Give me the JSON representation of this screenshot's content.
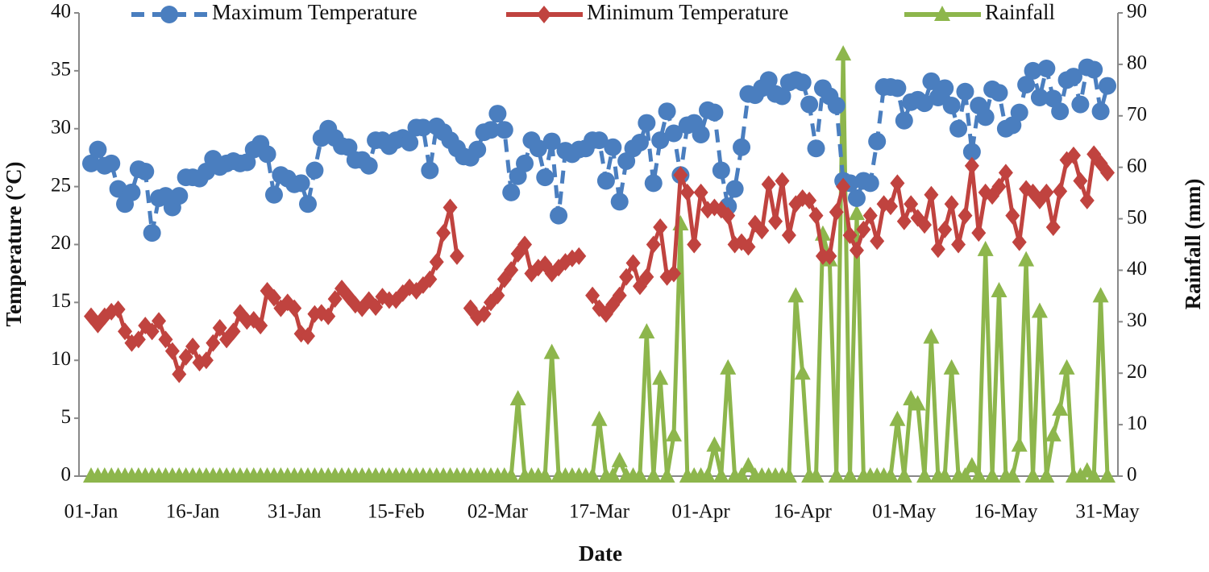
{
  "chart_data": {
    "type": "line",
    "x_label": "Date",
    "y_label": "Temperature (°C)",
    "y2_label": "Rainfall (mm)",
    "legend": "top",
    "grid": false,
    "categories": [
      "01-Jan",
      null,
      null,
      null,
      null,
      null,
      null,
      null,
      null,
      null,
      null,
      null,
      null,
      null,
      null,
      "16-Jan",
      null,
      null,
      null,
      null,
      null,
      null,
      null,
      null,
      null,
      null,
      null,
      null,
      null,
      null,
      "31-Jan",
      null,
      null,
      null,
      null,
      null,
      null,
      null,
      null,
      null,
      null,
      null,
      null,
      null,
      null,
      "15-Feb",
      null,
      null,
      null,
      null,
      null,
      null,
      null,
      null,
      null,
      null,
      null,
      null,
      null,
      null,
      "02-Mar",
      null,
      null,
      null,
      null,
      null,
      null,
      null,
      null,
      null,
      null,
      null,
      null,
      null,
      null,
      "17-Mar",
      null,
      null,
      null,
      null,
      null,
      null,
      null,
      null,
      null,
      null,
      null,
      null,
      null,
      null,
      "01-Apr",
      null,
      null,
      null,
      null,
      null,
      null,
      null,
      null,
      null,
      null,
      null,
      null,
      null,
      null,
      "16-Apr",
      null,
      null,
      null,
      null,
      null,
      null,
      null,
      null,
      null,
      null,
      null,
      null,
      null,
      null,
      "01-May",
      null,
      null,
      null,
      null,
      null,
      null,
      null,
      null,
      null,
      null,
      null,
      null,
      null,
      null,
      "16-May",
      null,
      null,
      null,
      null,
      null,
      null,
      null,
      null,
      null,
      null,
      null,
      null,
      null,
      null,
      "31-May"
    ],
    "ylim": [
      0,
      40
    ],
    "yticks": [
      0,
      5,
      10,
      15,
      20,
      25,
      30,
      35,
      40
    ],
    "y2lim": [
      0,
      90
    ],
    "y2ticks": [
      0,
      10,
      20,
      30,
      40,
      50,
      60,
      70,
      80,
      90
    ],
    "series": [
      {
        "name": "Maximum Temperature",
        "color": "#4a7ebf",
        "marker": "circle",
        "dashed": true,
        "values": [
          27,
          28.2,
          26.8,
          27,
          24.8,
          23.5,
          24.5,
          26.5,
          26.3,
          21,
          24,
          24.2,
          23.2,
          24.2,
          25.8,
          25.8,
          25.7,
          26.3,
          27.4,
          26.7,
          27,
          27.2,
          27,
          27.1,
          28.2,
          28.7,
          27.8,
          24.3,
          26,
          25.7,
          25.2,
          25.3,
          23.5,
          26.4,
          29.2,
          30,
          29.2,
          28.5,
          28.4,
          27.3,
          27.3,
          26.8,
          29,
          29,
          28.5,
          29,
          29.2,
          28.8,
          30.1,
          30.1,
          26.4,
          30.2,
          29.7,
          29,
          28.3,
          27.6,
          27.5,
          28.2,
          29.7,
          29.9,
          31.3,
          29.9,
          24.5,
          25.9,
          27,
          29,
          28.3,
          25.8,
          28.9,
          22.5,
          28.1,
          27.8,
          28.2,
          28.3,
          29,
          29,
          25.5,
          28.4,
          23.7,
          27.2,
          28.3,
          28.8,
          30.5,
          25.3,
          29,
          31.5,
          29.6,
          26,
          30.3,
          30.5,
          29.5,
          31.6,
          31.4,
          26.4,
          23.3,
          24.8,
          28.4,
          33,
          32.9,
          33.5,
          34.2,
          33,
          32.8,
          34,
          34.2,
          34,
          32.1,
          28.3,
          33.5,
          32.8,
          32,
          25.5,
          25.3,
          24,
          25.5,
          25.3,
          28.9,
          33.6,
          33.6,
          33.5,
          30.7,
          32.3,
          32.5,
          32.2,
          34.1,
          32.7,
          33.5,
          32,
          30,
          33.2,
          28,
          32,
          31,
          33.4,
          33.1,
          30,
          30.3,
          31.4,
          33.8,
          35,
          32.7,
          35.2,
          32.6,
          31.5,
          34.2,
          34.5,
          32.1,
          35.3,
          35.1,
          31.5,
          33.7
        ]
      },
      {
        "name": "Minimum Temperature",
        "color": "#c0433f",
        "marker": "diamond",
        "dashed": false,
        "values": [
          13.8,
          13.1,
          13.8,
          14.2,
          14.4,
          12.5,
          11.5,
          11.8,
          13,
          12.5,
          13.4,
          11.8,
          10.8,
          8.8,
          10.3,
          11.2,
          9.8,
          10,
          11.5,
          12.8,
          11.8,
          12.5,
          14.1,
          13.4,
          13.5,
          13,
          16,
          15.4,
          14.5,
          15,
          14.5,
          12.3,
          12.1,
          14,
          14.1,
          13.8,
          15.3,
          16.2,
          15.5,
          14.8,
          14.5,
          15.2,
          14.6,
          15.5,
          15.2,
          15.2,
          15.8,
          16.3,
          16,
          16.5,
          17,
          18.5,
          21,
          23.2,
          19,
          null,
          14.5,
          13.7,
          14,
          15,
          15.6,
          17,
          17.8,
          19.2,
          20,
          17.5,
          18,
          18.3,
          17.5,
          18,
          18.5,
          18.8,
          19,
          null,
          15.6,
          14.5,
          14,
          14.8,
          15.6,
          17.2,
          18.4,
          16.4,
          17.2,
          20,
          21.5,
          17.2,
          17.5,
          26,
          24.5,
          20,
          24.5,
          23,
          23.2,
          23,
          22.5,
          20,
          20.2,
          19.8,
          21.8,
          21.2,
          25.2,
          22,
          25.5,
          20.8,
          23.5,
          24,
          23.8,
          22.5,
          19,
          19,
          22.8,
          25,
          20.8,
          19.5,
          21.3,
          22.5,
          20.3,
          23.5,
          23.3,
          25.3,
          22,
          23.5,
          22.3,
          21.7,
          24.3,
          19.6,
          21.3,
          23.5,
          20,
          22.5,
          26.8,
          21,
          24.5,
          24.2,
          25,
          26.2,
          22.5,
          20.2,
          24.8,
          24.5,
          23.8,
          24.5,
          21.5,
          24.6,
          27.3,
          27.7,
          25.5,
          23.8,
          27.8,
          27,
          26.2
        ]
      },
      {
        "name": "Rainfall",
        "color": "#8db64c",
        "marker": "triangle",
        "dashed": false,
        "axis": "y2",
        "values": [
          0,
          0,
          0,
          0,
          0,
          0,
          0,
          0,
          0,
          0,
          0,
          0,
          0,
          0,
          0,
          0,
          0,
          0,
          0,
          0,
          0,
          0,
          0,
          0,
          0,
          0,
          0,
          0,
          0,
          0,
          0,
          0,
          0,
          0,
          0,
          0,
          0,
          0,
          0,
          0,
          0,
          0,
          0,
          0,
          0,
          0,
          0,
          0,
          0,
          0,
          0,
          0,
          0,
          0,
          0,
          0,
          0,
          0,
          0,
          0,
          0,
          0,
          0,
          15,
          0,
          0,
          0,
          0,
          24,
          0,
          0,
          0,
          0,
          0,
          0,
          11,
          0,
          0,
          3,
          0,
          0,
          0,
          28,
          0,
          19,
          0,
          8,
          49,
          0,
          0,
          0,
          0,
          6,
          0,
          21,
          0,
          0,
          2,
          0,
          0,
          0,
          0,
          0,
          0,
          35,
          20,
          0,
          0,
          47,
          42,
          0,
          82,
          0,
          51,
          0,
          0,
          0,
          0,
          0,
          11,
          0,
          15,
          14,
          0,
          27,
          0,
          0,
          21,
          0,
          0,
          2,
          0,
          44,
          0,
          36,
          0,
          0,
          6,
          42,
          0,
          32,
          0,
          8,
          13,
          21,
          0,
          0,
          1,
          0,
          35,
          0
        ]
      }
    ]
  }
}
